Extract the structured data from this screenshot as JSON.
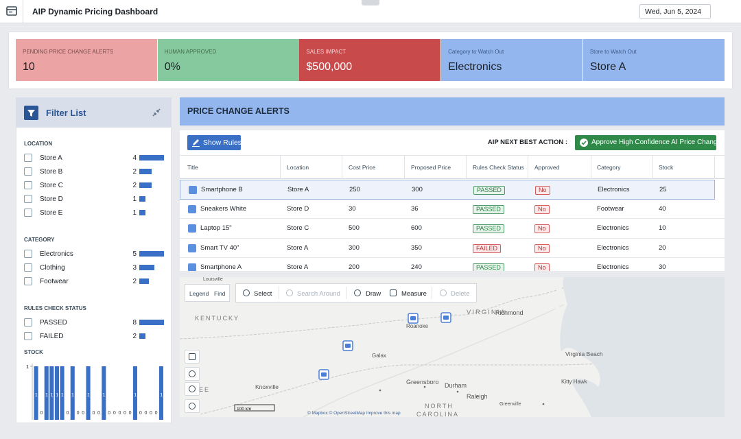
{
  "header": {
    "title": "AIP Dynamic Pricing Dashboard",
    "date": "Wed, Jun 5, 2024"
  },
  "kpis": [
    {
      "label": "PENDING PRICE CHANGE ALERTS",
      "value": "10"
    },
    {
      "label": "HUMAN APPROVED",
      "value": "0%"
    },
    {
      "label": "SALES IMPACT",
      "value": "$500,000"
    },
    {
      "label": "Category to Watch Out",
      "value": "Electronics"
    },
    {
      "label": "Store to Watch Out",
      "value": "Store A"
    }
  ],
  "filter": {
    "title": "Filter List",
    "sections": [
      {
        "label": "LOCATION",
        "items": [
          {
            "name": "Store A",
            "count": 4
          },
          {
            "name": "Store B",
            "count": 2
          },
          {
            "name": "Store C",
            "count": 2
          },
          {
            "name": "Store D",
            "count": 1
          },
          {
            "name": "Store E",
            "count": 1
          }
        ]
      },
      {
        "label": "CATEGORY",
        "items": [
          {
            "name": "Electronics",
            "count": 5
          },
          {
            "name": "Clothing",
            "count": 3
          },
          {
            "name": "Footwear",
            "count": 2
          }
        ]
      },
      {
        "label": "RULES CHECK STATUS",
        "items": [
          {
            "name": "PASSED",
            "count": 8
          },
          {
            "name": "FAILED",
            "count": 2
          }
        ]
      }
    ],
    "stock": {
      "label": "STOCK",
      "ylim": [
        0,
        1
      ],
      "yticks": [
        1
      ],
      "values": [
        1,
        0,
        1,
        1,
        1,
        1,
        0,
        1,
        0,
        0,
        1,
        0,
        0,
        1,
        0,
        0,
        0,
        0,
        0,
        1,
        0,
        0,
        0,
        0,
        1
      ]
    }
  },
  "alerts": {
    "title": "PRICE CHANGE ALERTS",
    "show_rules": "Show Rules",
    "next_action_label": "AIP NEXT BEST ACTION :",
    "approve_button": "Approve High Confidence AI Price Changes",
    "columns": [
      "Title",
      "Location",
      "Cost Price",
      "Proposed Price",
      "Rules Check Status",
      "Approved",
      "Category",
      "Stock"
    ],
    "rows": [
      [
        "Smartphone B",
        "Store A",
        250,
        300,
        "PASSED",
        "No",
        "Electronics",
        25
      ],
      [
        "Sneakers White",
        "Store D",
        30,
        36,
        "PASSED",
        "No",
        "Footwear",
        40
      ],
      [
        "Laptop 15\"",
        "Store C",
        500,
        600,
        "PASSED",
        "No",
        "Electronics",
        10
      ],
      [
        "Smart TV 40\"",
        "Store A",
        300,
        350,
        "FAILED",
        "No",
        "Electronics",
        20
      ],
      [
        "Smartphone A",
        "Store A",
        200,
        240,
        "PASSED",
        "No",
        "Electronics",
        30
      ]
    ]
  },
  "map": {
    "panel_buttons": [
      "Legend",
      "Find"
    ],
    "tools": [
      "Select",
      "Search Around",
      "Draw",
      "Measure",
      "Delete"
    ],
    "labels": [
      "Louisville",
      "KENTUCKY",
      "VIRGINIA",
      "Richmond",
      "Roanoke",
      "Galax",
      "Greensboro",
      "Durham",
      "Raleigh",
      "Greenville",
      "Knoxville",
      "SEE",
      "NORTH",
      "CAROLINA",
      "Virginia Beach",
      "Kitty Hawk"
    ],
    "scale": "100 km",
    "attribution": "© Mapbox © OpenStreetMap Improve this map"
  }
}
